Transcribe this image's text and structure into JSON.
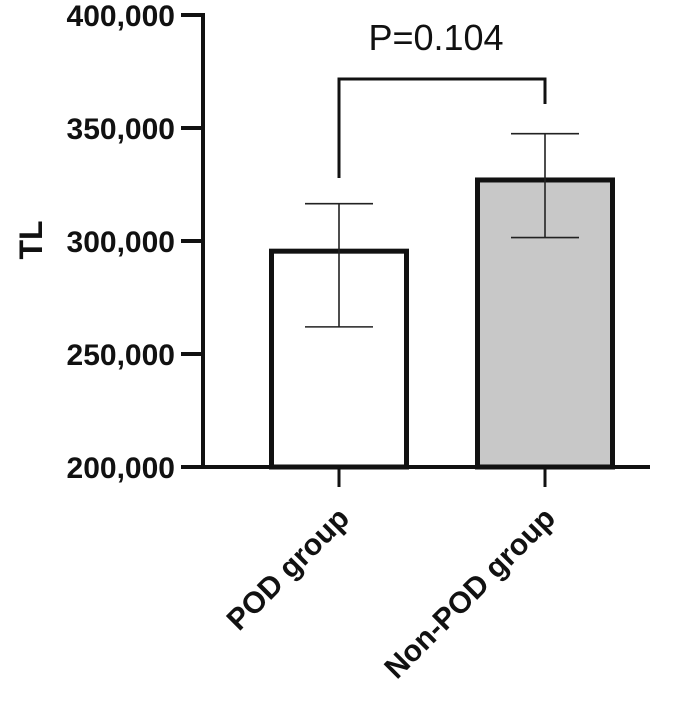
{
  "chart_data": {
    "type": "bar",
    "categories": [
      "POD group",
      "Non-POD group"
    ],
    "values": [
      295500,
      327000
    ],
    "error_upper": [
      316500,
      347500
    ],
    "error_lower": [
      262000,
      301500
    ],
    "bar_colors": [
      "#ffffff",
      "#c8c8c8"
    ],
    "ylabel": "TL",
    "xlabel": "",
    "ylim": [
      200000,
      400000
    ],
    "yticks": [
      200000,
      250000,
      300000,
      350000,
      400000
    ],
    "ytick_labels": [
      "200,000",
      "250,000",
      "300,000",
      "350,000",
      "400,000"
    ],
    "grid": false,
    "annotation": {
      "text": "P=0.104",
      "between": [
        "POD group",
        "Non-POD group"
      ]
    }
  }
}
